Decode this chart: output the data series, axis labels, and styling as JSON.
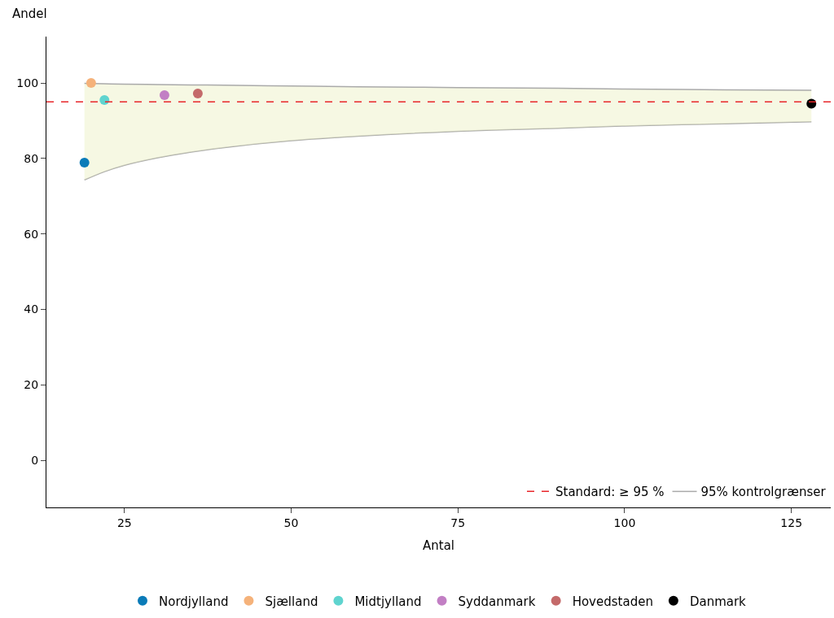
{
  "chart_data": {
    "type": "scatter",
    "xlabel": "Antal",
    "ylabel": "Andel",
    "xlim": [
      13.3,
      130.9
    ],
    "xticks": [
      25,
      50,
      75,
      100,
      125
    ],
    "ylim": [
      -12.5,
      112.3
    ],
    "yticks": [
      0,
      20,
      40,
      60,
      80,
      100
    ],
    "legend": "bottom",
    "marker": "circle",
    "series": [
      {
        "type": "line",
        "marker": "none",
        "color": "#aaaaaa",
        "x": [
          19,
          22,
          25,
          30,
          35,
          40,
          50,
          60,
          75,
          90,
          100,
          115,
          128
        ],
        "values": [
          74.3,
          76.5,
          78.2,
          80.2,
          81.7,
          82.9,
          84.7,
          85.9,
          87.2,
          88.0,
          88.6,
          89.2,
          89.7
        ]
      },
      {
        "type": "line",
        "marker": "none",
        "name": "95% kontrolgrænser",
        "color": "#aaaaaa",
        "x": [
          19,
          22,
          25,
          30,
          35,
          40,
          50,
          60,
          75,
          90,
          100,
          115,
          128
        ],
        "values": [
          99.9,
          99.8,
          99.7,
          99.6,
          99.5,
          99.4,
          99.2,
          99.0,
          98.8,
          98.6,
          98.4,
          98.2,
          98.1
        ],
        "lower": [
          74.3,
          76.5,
          78.2,
          80.2,
          81.7,
          82.9,
          84.7,
          85.9,
          87.2,
          88.0,
          88.6,
          89.2,
          89.7
        ],
        "upper": [
          99.9,
          99.8,
          99.7,
          99.6,
          99.5,
          99.4,
          99.2,
          99.0,
          98.8,
          98.6,
          98.4,
          98.2,
          98.1
        ]
      },
      {
        "name": "Nordjylland",
        "color": "#0a7bb8",
        "x": [
          19
        ],
        "values": [
          78.9
        ]
      },
      {
        "name": "Sjælland",
        "color": "#f5b27a",
        "x": [
          20
        ],
        "values": [
          100
        ]
      },
      {
        "name": "Midtjylland",
        "color": "#5fd4cf",
        "x": [
          22
        ],
        "values": [
          95.5
        ]
      },
      {
        "name": "Syddanmark",
        "color": "#c27fc4",
        "x": [
          31
        ],
        "values": [
          96.8
        ]
      },
      {
        "name": "Hovedstaden",
        "color": "#c46a6a",
        "x": [
          36
        ],
        "values": [
          97.2
        ]
      },
      {
        "name": "Danmark",
        "color": "#000000",
        "x": [
          128
        ],
        "values": [
          94.5
        ]
      }
    ],
    "ref_lines": [
      {
        "axis": "y",
        "value": 95,
        "label": "Standard: ≥ 95 %",
        "color": "#e8262a",
        "line_style": "dashed"
      }
    ]
  }
}
